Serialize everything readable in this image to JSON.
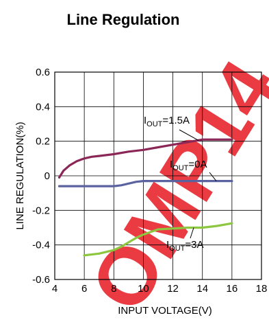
{
  "watermark": {
    "text": "OMP14",
    "color": "#e8262f"
  },
  "chart_data": {
    "type": "line",
    "title": "Line Regulation",
    "xlabel": "INPUT VOLTAGE(V)",
    "ylabel": "LINE REGULATION(%)",
    "xlim": [
      4,
      18
    ],
    "ylim": [
      -0.6,
      0.6
    ],
    "x_ticks": [
      "4",
      "6",
      "8",
      "10",
      "12",
      "14",
      "16",
      "18"
    ],
    "y_ticks": [
      "0.6",
      "0.4",
      "0.2",
      "0",
      "-0.2",
      "-0.4",
      "-0.6"
    ],
    "grid": true,
    "series": [
      {
        "name": "IOUT=1.5A",
        "name_main": "I",
        "name_sub": "OUT",
        "name_suffix": "=1.5A",
        "color": "#8b2757",
        "x": [
          4.3,
          4.6,
          5.0,
          5.5,
          6.0,
          6.5,
          7.0,
          8.0,
          9.0,
          10.0,
          11.0,
          12.0,
          13.0,
          13.7,
          14.0,
          15.0,
          16.0
        ],
        "y": [
          -0.01,
          0.03,
          0.06,
          0.085,
          0.1,
          0.11,
          0.115,
          0.125,
          0.14,
          0.15,
          0.165,
          0.18,
          0.195,
          0.205,
          0.21,
          0.21,
          0.21
        ]
      },
      {
        "name": "IOUT=0A",
        "name_main": "I",
        "name_sub": "OUT",
        "name_suffix": "=0A",
        "color": "#5b62a0",
        "x": [
          4.3,
          5.0,
          6.0,
          7.0,
          8.0,
          8.5,
          9.0,
          9.5,
          10.0,
          11.0,
          12.0,
          13.0,
          14.0,
          15.0,
          16.0
        ],
        "y": [
          -0.06,
          -0.06,
          -0.06,
          -0.06,
          -0.06,
          -0.055,
          -0.045,
          -0.035,
          -0.03,
          -0.03,
          -0.03,
          -0.03,
          -0.03,
          -0.03,
          -0.03
        ]
      },
      {
        "name": "IOUT=3A",
        "name_main": "I",
        "name_sub": "OUT",
        "name_suffix": "=3A",
        "color": "#8dc63f",
        "x": [
          6.0,
          7.0,
          8.0,
          8.5,
          9.0,
          9.5,
          10.0,
          10.5,
          11.0,
          12.0,
          13.0,
          14.0,
          15.0,
          16.0
        ],
        "y": [
          -0.46,
          -0.45,
          -0.43,
          -0.41,
          -0.385,
          -0.36,
          -0.34,
          -0.325,
          -0.31,
          -0.305,
          -0.3,
          -0.3,
          -0.29,
          -0.275
        ]
      }
    ]
  }
}
